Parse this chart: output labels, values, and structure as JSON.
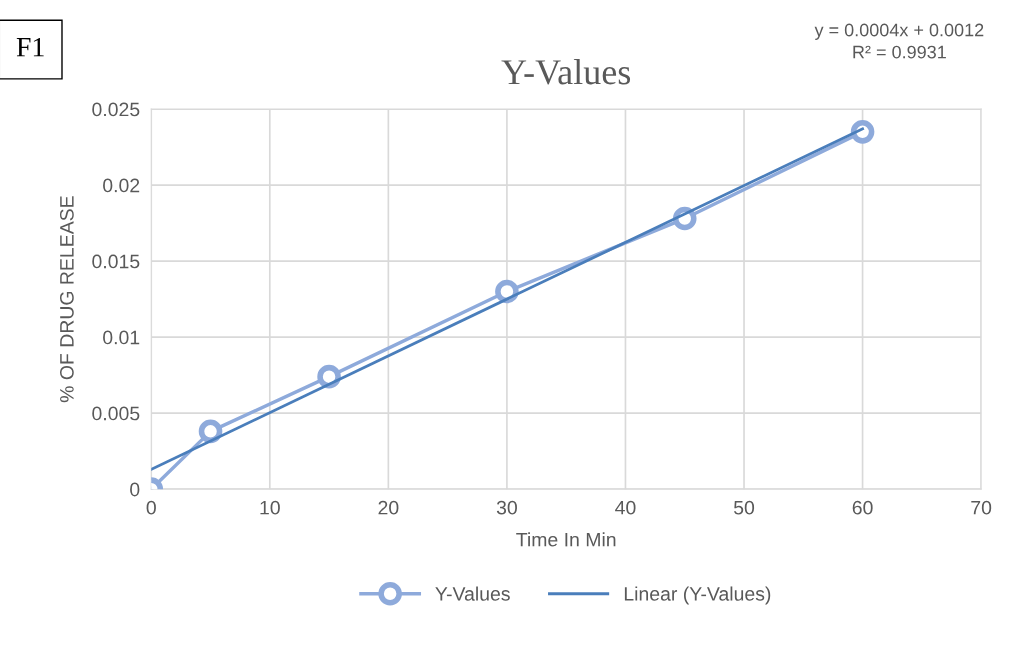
{
  "chart_data": {
    "type": "line",
    "title": "Y-Values",
    "xlabel": "Time In Min",
    "ylabel": "% OF DRUG RELEASE",
    "xlim": [
      0,
      70
    ],
    "xticks": [
      0,
      10,
      20,
      30,
      40,
      50,
      60,
      70
    ],
    "ylim": [
      0,
      0.025
    ],
    "yticks": [
      0,
      0.005,
      0.01,
      0.015,
      0.02,
      0.025
    ],
    "grid": true,
    "legend": "bottom",
    "marker": "circle",
    "line_style": "solid",
    "series": [
      {
        "name": "Y-Values",
        "color": "#8eaadb",
        "x": [
          0,
          5,
          15,
          30,
          45,
          60
        ],
        "values": [
          0,
          0.0038,
          0.0074,
          0.013,
          0.0178,
          0.0235
        ]
      },
      {
        "name": "Linear (Y-Values)",
        "type": "line",
        "marker": "none",
        "color": "#4a7ebb",
        "x": [
          0,
          60
        ],
        "values": [
          0.0013,
          0.0237
        ]
      }
    ],
    "annotations": [
      "y = 0.0004x + 0.0012\nR² = 0.9931",
      "F1"
    ]
  }
}
